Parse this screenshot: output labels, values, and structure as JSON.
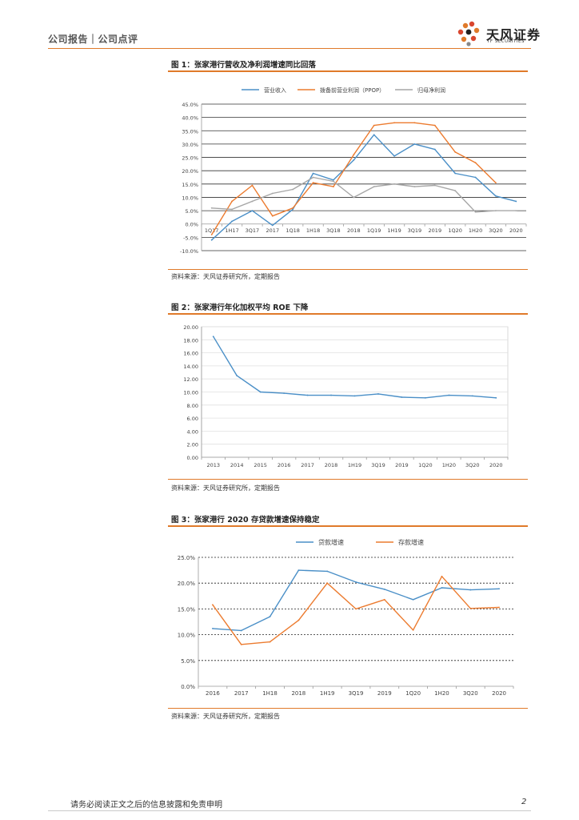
{
  "header": {
    "left": "公司报告｜公司点评",
    "brand_cn": "天风证券",
    "brand_en": "TF SECURITIES"
  },
  "figures": {
    "fig1": {
      "title": "图 1：张家港行营收及净利润增速同比回落",
      "source": "资料来源：天风证券研究所，定期报告"
    },
    "fig2": {
      "title": "图 2：张家港行年化加权平均 ROE 下降",
      "source": "资料来源：天风证券研究所，定期报告"
    },
    "fig3": {
      "title": "图 3：张家港行 2020 存贷款增速保持稳定",
      "source": "资料来源：天风证券研究所，定期报告"
    }
  },
  "footer": {
    "text": "请务必阅读正文之后的信息披露和免责申明",
    "page": "2"
  },
  "colors": {
    "blue": "#4a8fc7",
    "orange": "#ec7b2f",
    "gray": "#a6a6a6",
    "accent": "#e07a2a"
  },
  "chart_data": [
    {
      "type": "line",
      "title": "图 1：张家港行营收及净利润增速同比回落",
      "categories": [
        "1Q17",
        "1H17",
        "3Q17",
        "2017",
        "1Q18",
        "1H18",
        "3Q18",
        "2018",
        "1Q19",
        "1H19",
        "3Q19",
        "2019",
        "1Q20",
        "1H20",
        "3Q20",
        "2020"
      ],
      "ylim": [
        -10,
        45
      ],
      "yticks": [
        -10,
        -5,
        0,
        5,
        10,
        15,
        20,
        25,
        30,
        35,
        40,
        45
      ],
      "ytick_labels": [
        "-10.0%",
        "-5.0%",
        "0.0%",
        "5.0%",
        "10.0%",
        "15.0%",
        "20.0%",
        "25.0%",
        "30.0%",
        "35.0%",
        "40.0%",
        "45.0%"
      ],
      "series": [
        {
          "name": "营业收入",
          "color": "#4a8fc7",
          "values": [
            -6,
            1,
            5,
            -0.5,
            5.5,
            19,
            16.5,
            24,
            33.5,
            25.5,
            30,
            28,
            19,
            17.5,
            10.5,
            8.5
          ]
        },
        {
          "name": "拨备前营业利润（PPOP）",
          "color": "#ec7b2f",
          "values": [
            -4,
            8.5,
            14.5,
            3,
            6,
            15.5,
            14,
            26,
            37,
            38,
            38,
            37,
            27,
            23,
            15.5,
            null
          ]
        },
        {
          "name": "归母净利润",
          "color": "#a6a6a6",
          "values": [
            6,
            5.5,
            8.5,
            11.5,
            13,
            17.5,
            16,
            10,
            14,
            15,
            14,
            14.5,
            12.5,
            4.5,
            5,
            5
          ]
        }
      ]
    },
    {
      "type": "line",
      "title": "图 2：张家港行年化加权平均 ROE 下降",
      "categories": [
        "2013",
        "2014",
        "2015",
        "2016",
        "2017",
        "2018",
        "1H19",
        "3Q19",
        "2019",
        "1Q20",
        "1H20",
        "3Q20",
        "2020"
      ],
      "ylim": [
        0,
        20
      ],
      "yticks": [
        0,
        2,
        4,
        6,
        8,
        10,
        12,
        14,
        16,
        18,
        20
      ],
      "ytick_labels": [
        "0.00",
        "2.00",
        "4.00",
        "6.00",
        "8.00",
        "10.00",
        "12.00",
        "14.00",
        "16.00",
        "18.00",
        "20.00"
      ],
      "series": [
        {
          "name": "ROE",
          "color": "#4a8fc7",
          "values": [
            18.5,
            12.5,
            10,
            9.8,
            9.5,
            9.5,
            9.4,
            9.7,
            9.2,
            9.1,
            9.5,
            9.4,
            9.1
          ]
        }
      ]
    },
    {
      "type": "line",
      "title": "图 3：张家港行 2020 存贷款增速保持稳定",
      "categories": [
        "2016",
        "2017",
        "1H18",
        "2018",
        "1H19",
        "3Q19",
        "2019",
        "1Q20",
        "1H20",
        "3Q20",
        "2020"
      ],
      "ylim": [
        0,
        25
      ],
      "yticks": [
        0,
        5,
        10,
        15,
        20,
        25
      ],
      "ytick_labels": [
        "0.0%",
        "5.0%",
        "10.0%",
        "15.0%",
        "20.0%",
        "25.0%"
      ],
      "series": [
        {
          "name": "贷款增速",
          "color": "#4a8fc7",
          "values": [
            11.2,
            10.8,
            13.5,
            22.5,
            22.3,
            20.2,
            18.8,
            16.8,
            19.1,
            18.7,
            18.9
          ]
        },
        {
          "name": "存款增速",
          "color": "#ec7b2f",
          "values": [
            15.8,
            8.1,
            8.6,
            12.8,
            20,
            15,
            16.8,
            10.9,
            21.3,
            15.1,
            15.3
          ]
        }
      ]
    }
  ]
}
